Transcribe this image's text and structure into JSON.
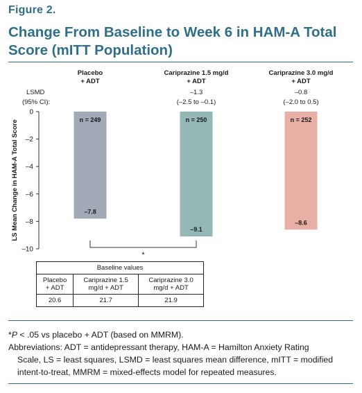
{
  "figure_label": "Figure 2.",
  "title": "Change From Baseline to Week 6 in HAM-A Total Score (mITT Population)",
  "chart_data": {
    "type": "bar",
    "categories": [
      "Placebo + ADT",
      "Cariprazine 1.5 mg/d + ADT",
      "Cariprazine 3.0 mg/d + ADT"
    ],
    "category_lines": [
      [
        "Placebo",
        "+ ADT"
      ],
      [
        "Cariprazine 1.5 mg/d",
        "+ ADT"
      ],
      [
        "Cariprazine 3.0 mg/d",
        "+ ADT"
      ]
    ],
    "values": [
      -7.8,
      -9.1,
      -8.6
    ],
    "value_labels": [
      "–7.8",
      "–9.1",
      "–8.6"
    ],
    "n_labels": [
      "n = 249",
      "n = 250",
      "n = 252"
    ],
    "colors": [
      "#a2a9b7",
      "#94b8b6",
      "#e8b0a5"
    ],
    "ylabel": "LS Mean Change in HAM-A Total Score",
    "ylim": [
      -10,
      0
    ],
    "yticks": [
      0,
      -2,
      -4,
      -6,
      -8,
      -10
    ],
    "ytick_labels": [
      "0",
      "–2",
      "–4",
      "–6",
      "–8",
      "–10"
    ],
    "lsmd_header": [
      "LSMD",
      "(95% CI):"
    ],
    "lsmd": [
      null,
      {
        "value": "–1.3",
        "ci": "(–2.5 to –0.1)"
      },
      {
        "value": "–0.8",
        "ci": "(–2.0 to 0.5)"
      }
    ],
    "significance": {
      "from": 0,
      "to": 1,
      "label": "*"
    },
    "grid": false,
    "legend": "none"
  },
  "baseline_table": {
    "header": "Baseline values",
    "columns": [
      [
        "Placebo",
        "+ ADT"
      ],
      [
        "Cariprazine 1.5",
        "mg/d + ADT"
      ],
      [
        "Cariprazine 3.0",
        "mg/d + ADT"
      ]
    ],
    "values": [
      "20.6",
      "21.7",
      "21.9"
    ]
  },
  "footnotes": {
    "sig_prefix": "*",
    "sig_italic": "P",
    "sig_text": " < .05 vs placebo + ADT (based on MMRM).",
    "abbrev_line1": "Abbreviations: ADT = antidepressant therapy, HAM-A = Hamilton Anxiety Rating",
    "abbrev_line2": "Scale, LS = least squares, LSMD = least squares mean difference, mITT = modified",
    "abbrev_line3": "intent-to-treat, MMRM = mixed-effects model for repeated measures."
  }
}
